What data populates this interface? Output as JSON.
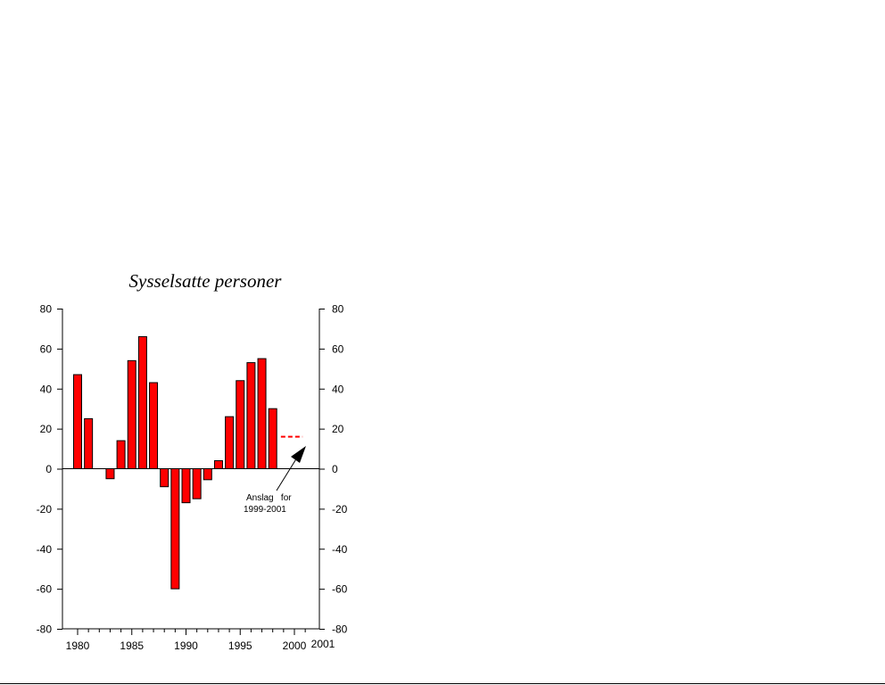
{
  "chart_data": {
    "type": "bar",
    "title": "Sysselsatte personer",
    "xlabel": "",
    "ylabel": "",
    "ylim": [
      -80,
      80
    ],
    "yticks": [
      80,
      60,
      40,
      20,
      0,
      -20,
      -40,
      -60,
      -80
    ],
    "xticks": [
      "1980",
      "1985",
      "1990",
      "1995",
      "2000",
      "2001"
    ],
    "x": [
      1980,
      1981,
      1982,
      1983,
      1984,
      1985,
      1986,
      1987,
      1988,
      1989,
      1990,
      1991,
      1992,
      1993,
      1994,
      1995,
      1996,
      1997,
      1998
    ],
    "values": [
      47,
      25,
      0,
      -5,
      14,
      54,
      66,
      43,
      -9,
      -60,
      -17,
      -15,
      -5.5,
      4,
      26,
      44,
      53,
      55,
      30
    ],
    "bar_color": "#ff0000",
    "forecast": {
      "x_from": 1999,
      "x_to": 2001,
      "value": 16,
      "color": "#ff0000",
      "style": "dashed"
    },
    "annotation": {
      "line1": "Anslag   for",
      "line2": "1999-2001"
    },
    "grid": false
  }
}
